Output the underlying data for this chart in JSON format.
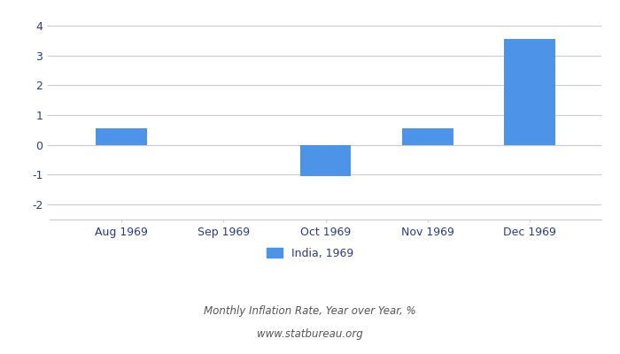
{
  "categories": [
    "Aug 1969",
    "Sep 1969",
    "Oct 1969",
    "Nov 1969",
    "Dec 1969"
  ],
  "values": [
    0.55,
    0.0,
    -1.05,
    0.55,
    3.55
  ],
  "bar_color": "#4d94e8",
  "ylim": [
    -2.5,
    4.5
  ],
  "yticks": [
    -2,
    -1,
    0,
    1,
    2,
    3,
    4
  ],
  "legend_label": "India, 1969",
  "subtitle1": "Monthly Inflation Rate, Year over Year, %",
  "subtitle2": "www.statbureau.org",
  "background_color": "#ffffff",
  "grid_color": "#cccccc",
  "tick_color": "#2b3a8c",
  "bar_width": 0.5
}
